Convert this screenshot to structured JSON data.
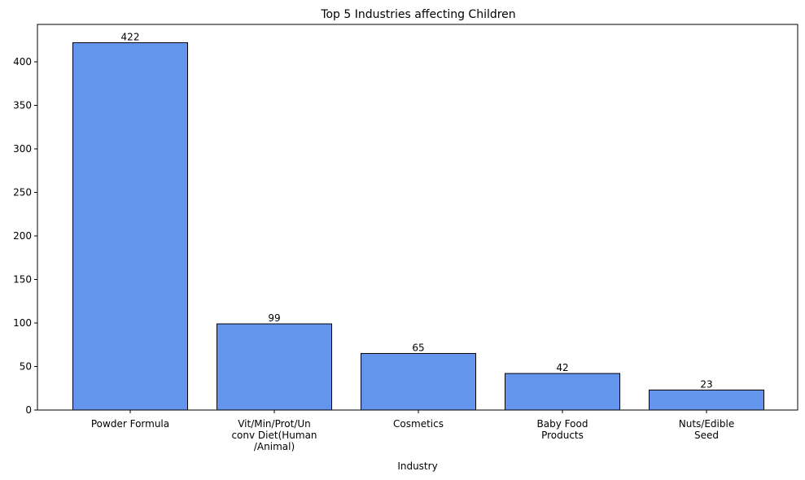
{
  "chart_data": {
    "type": "bar",
    "title": "Top 5 Industries affecting Children",
    "xlabel": "Industry",
    "ylabel": "",
    "categories": [
      [
        "Powder Formula"
      ],
      [
        "Vit/Min/Prot/Un",
        "conv Diet(Human",
        "/Animal)"
      ],
      [
        "Cosmetics"
      ],
      [
        "Baby Food",
        "Products"
      ],
      [
        "Nuts/Edible",
        "Seed"
      ]
    ],
    "values": [
      422,
      99,
      65,
      42,
      23
    ],
    "data_labels": [
      "422",
      "99",
      "65",
      "42",
      "23"
    ],
    "ylim": [
      0,
      443
    ],
    "yticks": [
      0,
      50,
      100,
      150,
      200,
      250,
      300,
      350,
      400
    ],
    "grid": false,
    "bar_color": "#6495ED",
    "edge_color": "#000000"
  }
}
